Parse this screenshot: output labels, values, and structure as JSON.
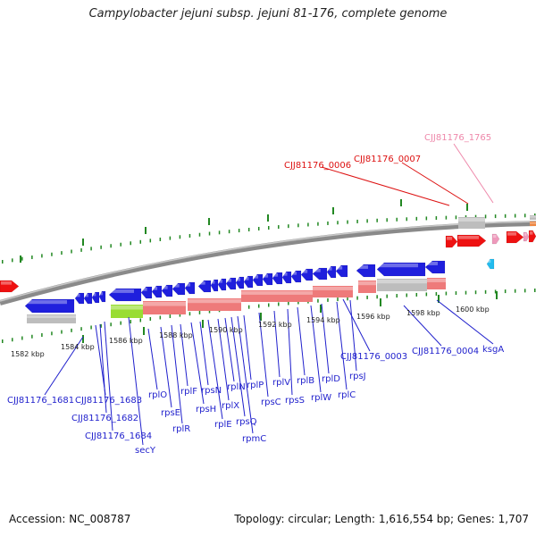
{
  "title": "Campylobacter jejuni subsp. jejuni 81-176, complete genome",
  "footer": {
    "accession": "Accession: NC_008787",
    "stats": "Topology: circular; Length: 1,616,554 bp; Genes: 1,707"
  },
  "colors": {
    "forward_gene": "#ee1111",
    "reverse_gene": "#1f1fdd",
    "rrna": "#ee7a7a",
    "pseudo": "#bdbdbd",
    "seg_green": "#99dd33",
    "pink_gene": "#ee99bb",
    "cyan_gene": "#22bbee",
    "axis": "#777777",
    "tick": "#228822",
    "label_blue": "#1f1fcc",
    "label_red": "#dd1111",
    "label_pink": "#ee88aa"
  },
  "scale": {
    "unit": "kbp",
    "ticks": [
      {
        "value": 1582,
        "label": "1582 kbp"
      },
      {
        "value": 1584,
        "label": "1584 kbp"
      },
      {
        "value": 1586,
        "label": "1586 kbp"
      },
      {
        "value": 1588,
        "label": "1588 kbp"
      },
      {
        "value": 1590,
        "label": "1590 kbp"
      },
      {
        "value": 1592,
        "label": "1592 kbp"
      },
      {
        "value": 1594,
        "label": "1594 kbp"
      },
      {
        "value": 1596,
        "label": "1596 kbp"
      },
      {
        "value": 1598,
        "label": "1598 kbp"
      },
      {
        "value": 1600,
        "label": "1600 kbp"
      }
    ]
  },
  "labels": {
    "forward_strand": [
      "CJJ81176_0006",
      "CJJ81176_0007",
      "CJJ81176_1765"
    ],
    "reverse_strand": [
      "CJJ81176_1681",
      "CJJ81176_1683",
      "CJJ81176_1682",
      "CJJ81176_1684",
      "secY",
      "rplO",
      "rpsE",
      "rplR",
      "rplF",
      "rpsH",
      "rpsN",
      "rplE",
      "rplX",
      "rplN",
      "rpsQ",
      "rpmC",
      "rplP",
      "rpsC",
      "rplV",
      "rpsS",
      "rplB",
      "rplW",
      "rplD",
      "rplC",
      "rpsJ",
      "CJJ81176_0003",
      "CJJ81176_0004",
      "ksgA"
    ]
  }
}
